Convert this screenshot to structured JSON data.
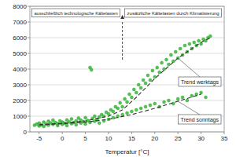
{
  "chart_data": {
    "type": "scatter",
    "x_label": "Temperatur [°C]",
    "annotations": [
      "ausschließlich technologische Kältelasten",
      "zusätzliche Kältelasten durch Klimatisierung"
    ],
    "vline_x": 13,
    "xlim": [
      -7,
      35
    ],
    "xticks": [
      -5,
      0,
      5,
      10,
      15,
      20,
      25,
      30,
      35
    ],
    "ylim": [
      0,
      8000
    ],
    "yticks": [
      0,
      1000,
      2000,
      3000,
      4000,
      5000,
      6000,
      7000,
      8000
    ],
    "grid": true,
    "series": [
      {
        "type": "scatter",
        "marker": "circle",
        "color": "#3cc03c",
        "x": [
          -6,
          -5.5,
          -5,
          -5,
          -4.5,
          -4,
          -4,
          -3.5,
          -3,
          -3,
          -2.5,
          -2,
          -2,
          -1.5,
          -1,
          -1,
          -0.5,
          0,
          0,
          0.5,
          1,
          1,
          1.5,
          2,
          2,
          2.5,
          3,
          3,
          3.5,
          4,
          4,
          4.5,
          5,
          5,
          5.5,
          6,
          6,
          6.3,
          6.5,
          7,
          7,
          7.5,
          8,
          8,
          8.5,
          9,
          9,
          9.5,
          10,
          10,
          10.5,
          11,
          11,
          11.5,
          12,
          12,
          12.5,
          13,
          13,
          13.5,
          14,
          14,
          14.5,
          15,
          15,
          15.5,
          16,
          16,
          16.5,
          17,
          17,
          17.5,
          18,
          18,
          18.5,
          19,
          19,
          19.5,
          20,
          20,
          20.5,
          21,
          21,
          21.5,
          22,
          22,
          22.5,
          23,
          23,
          23.5,
          24,
          24,
          24.5,
          25,
          25,
          25.5,
          26,
          26,
          26.5,
          27,
          27,
          27.5,
          28,
          28,
          28.5,
          29,
          29,
          29.5,
          30,
          30,
          30.5,
          31,
          31,
          31.5,
          32
        ],
        "values": [
          420,
          500,
          380,
          560,
          450,
          620,
          350,
          500,
          430,
          680,
          560,
          470,
          750,
          600,
          400,
          520,
          700,
          480,
          620,
          550,
          400,
          760,
          640,
          520,
          820,
          600,
          700,
          450,
          880,
          560,
          750,
          650,
          500,
          900,
          720,
          600,
          4100,
          3950,
          850,
          680,
          1000,
          780,
          560,
          950,
          1100,
          700,
          1000,
          1250,
          800,
          1150,
          1400,
          900,
          1300,
          1600,
          1000,
          1500,
          1850,
          1100,
          1600,
          2100,
          1200,
          1900,
          2400,
          1300,
          2200,
          2700,
          1400,
          2500,
          3000,
          1500,
          2800,
          3300,
          1600,
          3100,
          3600,
          1700,
          3300,
          3900,
          1800,
          3500,
          4100,
          1600,
          3800,
          4400,
          1900,
          4000,
          4600,
          2000,
          4300,
          4900,
          1800,
          4500,
          5100,
          2100,
          4700,
          5300,
          2200,
          4900,
          5500,
          2000,
          5100,
          5600,
          2300,
          5300,
          5700,
          2400,
          5500,
          5800,
          2500,
          5600,
          5900,
          2200,
          5800,
          6000,
          6100
        ]
      },
      {
        "name": "Trend werktags",
        "type": "line",
        "line_style": "dashed",
        "color": "#333333",
        "x": [
          -5,
          0,
          5,
          10,
          13,
          16,
          20,
          25,
          30,
          32
        ],
        "values": [
          450,
          550,
          700,
          1000,
          1400,
          2200,
          3400,
          4700,
          5700,
          6000
        ]
      },
      {
        "name": "Trend sonntags",
        "type": "line",
        "line_style": "dashed",
        "color": "#333333",
        "x": [
          -5,
          0,
          5,
          10,
          15,
          20,
          25,
          30
        ],
        "values": [
          450,
          520,
          620,
          800,
          1100,
          1500,
          1950,
          2400
        ]
      }
    ]
  }
}
